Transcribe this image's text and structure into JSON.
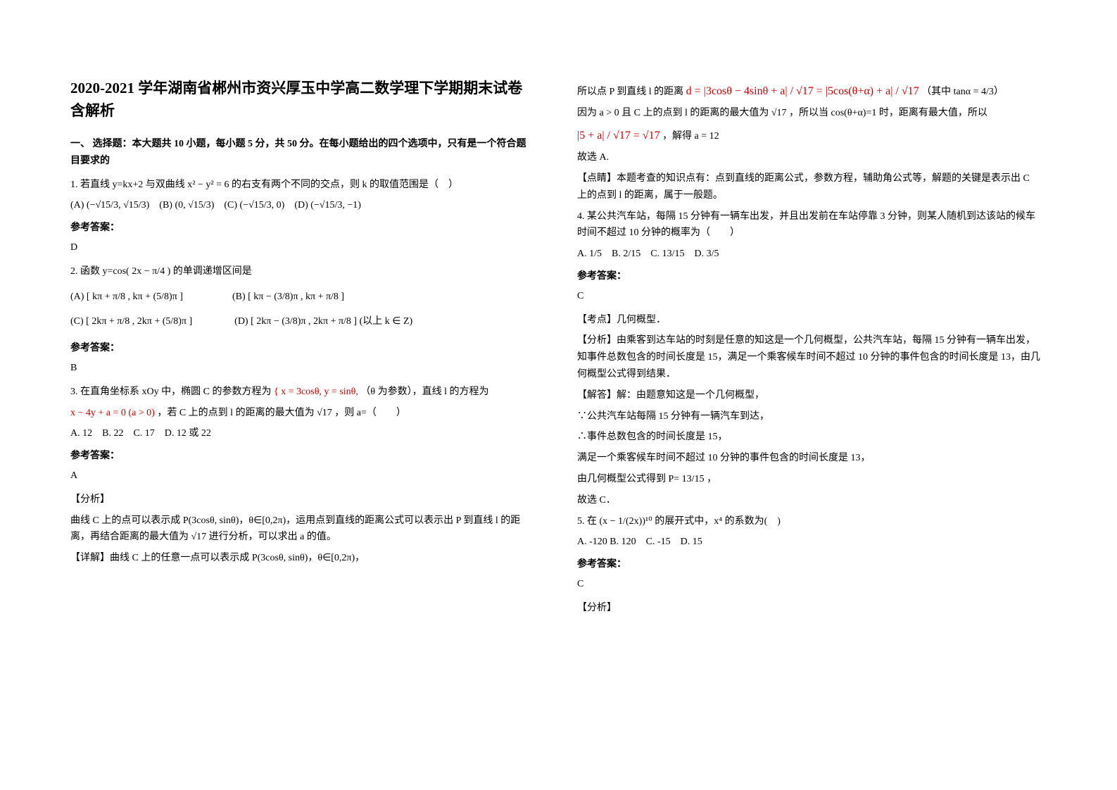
{
  "title": "2020-2021 学年湖南省郴州市资兴厚玉中学高二数学理下学期期末试卷含解析",
  "section1": "一、 选择题：本大题共 10 小题，每小题 5 分，共 50 分。在每小题给出的四个选项中，只有是一个符合题目要求的",
  "q1": {
    "stem": "1. 若直线 y=kx+2 与双曲线 x² − y² = 6 的右支有两个不同的交点，则 k 的取值范围是（　）",
    "choices": "(A) (−√15/3, √15/3)　(B) (0, √15/3)　(C) (−√15/3, 0)　(D) (−√15/3, −1)",
    "answer_label": "参考答案：",
    "answer": "D"
  },
  "q2": {
    "stem": "2. 函数 y=cos( 2x − π/4 ) 的单调递增区间是",
    "lineA": "(A) [ kπ + π/8 , kπ + (5/8)π ]",
    "lineB": "(B) [ kπ − (3/8)π , kπ + π/8 ]",
    "lineC": "(C) [ 2kπ + π/8 , 2kπ + (5/8)π ]",
    "lineD": "(D) [ 2kπ − (3/8)π , 2kπ + π/8 ] (以上 k ∈ Z)",
    "answer_label": "参考答案：",
    "answer": "B"
  },
  "q3": {
    "stem1": "3. 在直角坐标系 xOy 中，椭圆 C 的参数方程为",
    "param": "{ x = 3cosθ,  y = sinθ,",
    "stem2": "（θ 为参数），直线 l 的方程为",
    "line_eq": "x − 4y + a = 0 (a > 0)",
    "stem3": "，若 C 上的点到 l 的距离的最大值为 √17 ，则 a=（　　）",
    "choices": "A. 12　B. 22　C. 17　D. 12 或 22",
    "answer_label": "参考答案：",
    "answer": "A",
    "analysis_label": "【分析】",
    "analysis": "曲线 C 上的点可以表示成 P(3cosθ, sinθ)，θ∈[0,2π)，运用点到直线的距离公式可以表示出 P 到直线 l 的距离，再结合距离的最大值为 √17 进行分析，可以求出 a 的值。",
    "detail_label": "【详解】曲线 C 上的任意一点可以表示成 P(3cosθ, sinθ)，θ∈[0,2π)，"
  },
  "right": {
    "dist_line1": "所以点 P 到直线 l 的距离",
    "dist_formula": "d = |3cosθ − 4sinθ + a| / √17 = |5cos(θ+α) + a| / √17",
    "dist_tail": "（其中 tanα = 4/3）",
    "line2a": "因为 a > 0 且 C 上的点到 l 的距离的最大值为 √17 ，所以当 cos(θ+α)=1 时，距离有最大值，所以",
    "eq": "|5 + a| / √17 = √17",
    "eq_tail": "，解得 a = 12",
    "so": "故选 A.",
    "dianping": "【点睛】本题考查的知识点有：点到直线的距离公式，参数方程，辅助角公式等，解题的关键是表示出 C 上的点到 l 的距离，属于一般题。"
  },
  "q4": {
    "stem": "4. 某公共汽车站，每隔 15 分钟有一辆车出发，并且出发前在车站停靠 3 分钟，则某人随机到达该站的候车时间不超过 10 分钟的概率为（　　）",
    "choices": "A. 1/5　B. 2/15　C. 13/15　D. 3/5",
    "answer_label": "参考答案：",
    "answer": "C",
    "kd": "【考点】几何概型．",
    "fx": "【分析】由乘客到达车站的时刻是任意的知这是一个几何概型，公共汽车站，每隔 15 分钟有一辆车出发，知事件总数包含的时间长度是 15，满足一个乘客候车时间不超过 10 分钟的事件包含的时间长度是 13，由几何概型公式得到结果．",
    "jd1": "【解答】解：由题意知这是一个几何概型，",
    "jd2": "∵公共汽车站每隔 15 分钟有一辆汽车到达，",
    "jd3": "∴事件总数包含的时间长度是 15，",
    "jd4": "满足一个乘客候车时间不超过 10 分钟的事件包含的时间长度是 13，",
    "jd5": "由几何概型公式得到 P= 13/15 ，",
    "jd6": "故选 C．"
  },
  "q5": {
    "stem": "5. 在 (x − 1/(2x))¹⁰ 的展开式中，x⁴ 的系数为(　)",
    "choices": "A. -120  B. 120　C. -15　D. 15",
    "answer_label": "参考答案：",
    "answer": "C",
    "fx": "【分析】"
  }
}
